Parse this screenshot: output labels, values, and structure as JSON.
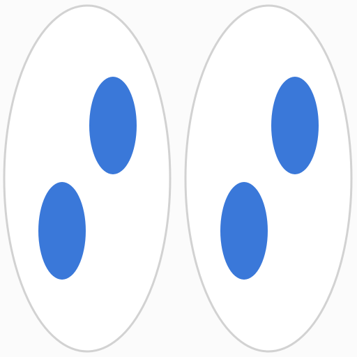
{
  "colors": {
    "background": "#fbfbfb",
    "outline": "#d2d2d2",
    "dot": "#3a78d9"
  },
  "shapes": {
    "count": 2,
    "items": [
      {
        "dots": 2
      },
      {
        "dots": 2
      }
    ]
  }
}
